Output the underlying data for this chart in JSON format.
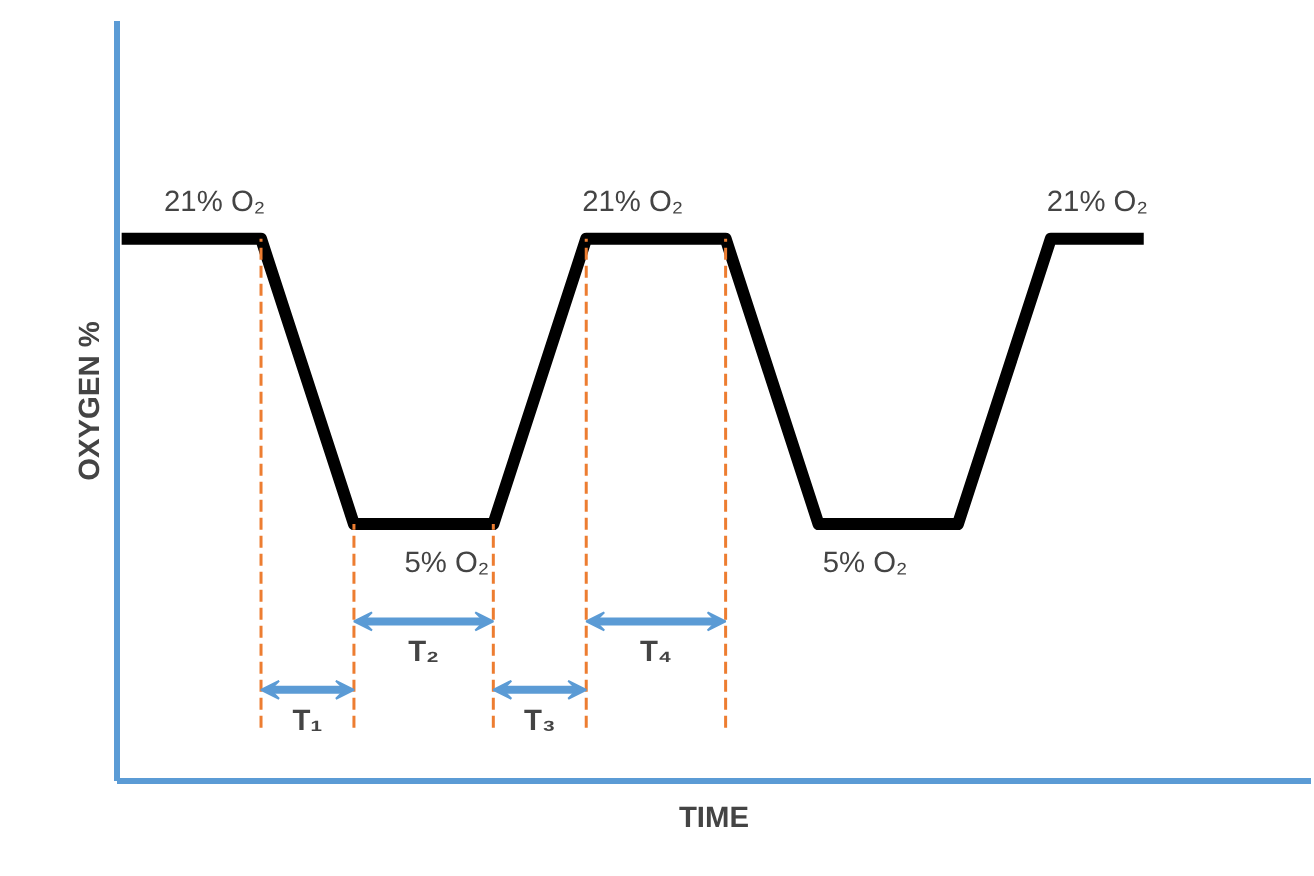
{
  "chart_data": {
    "type": "line",
    "xlabel": "TIME",
    "ylabel": "OXYGEN %",
    "categories": [
      null,
      null,
      null,
      null,
      null,
      null,
      null,
      null,
      null,
      null,
      null,
      null,
      null,
      null,
      null,
      null,
      null,
      null,
      null,
      null,
      null,
      null,
      null
    ],
    "ylim": [
      -9.4,
      33.2
    ],
    "series": [
      {
        "color": "#000000",
        "values": [
          21,
          21,
          21,
          21,
          13,
          5,
          5,
          5,
          5,
          13,
          21,
          21,
          21,
          21,
          13,
          5,
          5,
          5,
          5,
          13,
          21,
          21,
          21
        ],
        "value_labels": [
          null,
          null,
          "21% O₂",
          null,
          null,
          null,
          null,
          "5% O₂",
          null,
          null,
          null,
          "21% O₂",
          null,
          null,
          null,
          null,
          "5% O₂",
          null,
          null,
          null,
          null,
          "21% O₂",
          null
        ]
      }
    ],
    "annotations": [
      "T₁",
      "T₂",
      "T₃",
      "T₄"
    ]
  }
}
